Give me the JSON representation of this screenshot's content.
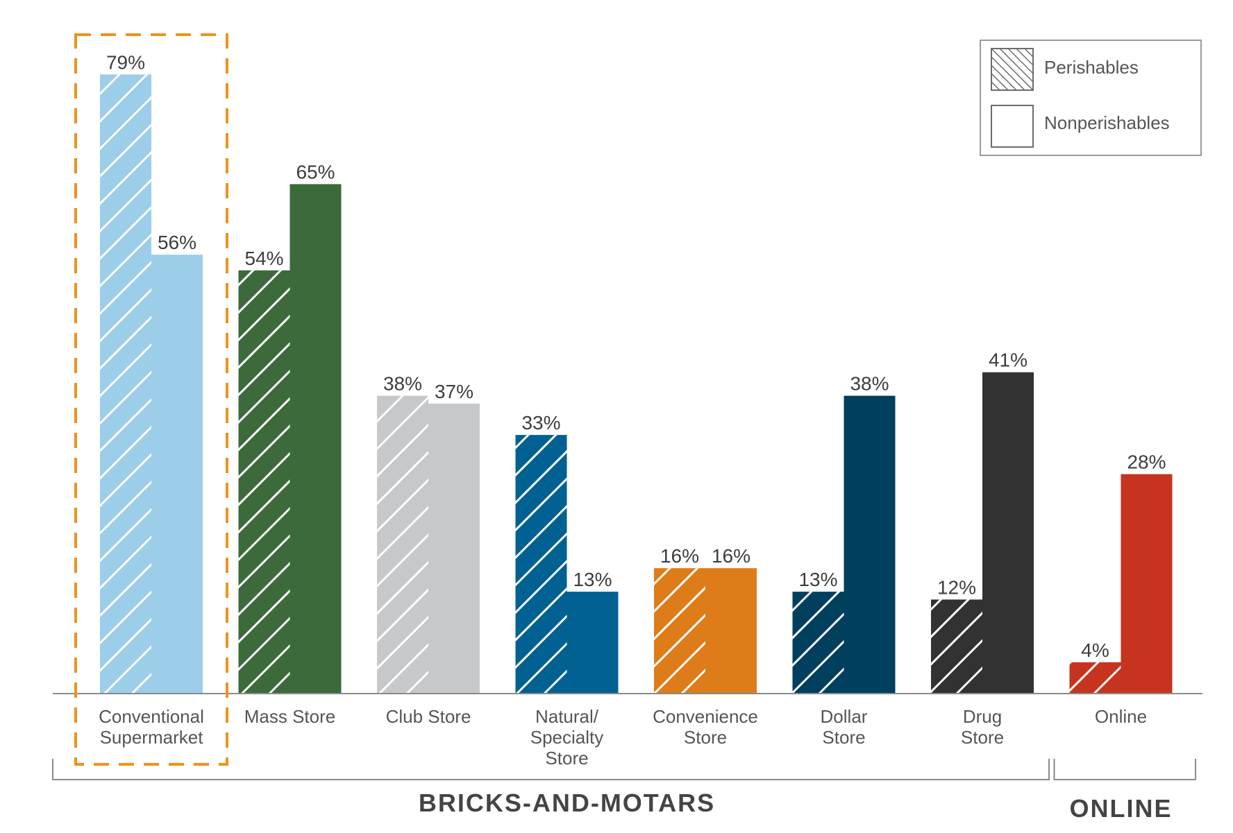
{
  "chart_data": {
    "type": "bar",
    "title": "",
    "xlabel": "",
    "ylabel": "",
    "ylim": [
      0,
      100
    ],
    "grid": false,
    "legend_position": "top-right",
    "categories": [
      "Conventional\nSupermarket",
      "Mass Store",
      "Club Store",
      "Natural/\nSpecialty\nStore",
      "Convenience\nStore",
      "Dollar\nStore",
      "Drug\nStore",
      "Online"
    ],
    "category_colors": [
      "#9ccde9",
      "#3c6a3b",
      "#c6c8ca",
      "#006192",
      "#de7c1a",
      "#003f5e",
      "#323233",
      "#c6341f"
    ],
    "series": [
      {
        "name": "Perishables",
        "pattern": "hatched",
        "values": [
          79,
          54,
          38,
          33,
          16,
          13,
          12,
          4
        ]
      },
      {
        "name": "Nonperishables",
        "pattern": "solid",
        "values": [
          56,
          65,
          37,
          13,
          16,
          38,
          41,
          28
        ]
      }
    ],
    "value_suffix": "%",
    "groups": [
      {
        "label": "BRICKS-AND-MOTARS",
        "start": 0,
        "end": 6
      },
      {
        "label": "ONLINE",
        "start": 7,
        "end": 7
      }
    ],
    "highlight_category": 0,
    "highlight_color": "#f0911e"
  }
}
